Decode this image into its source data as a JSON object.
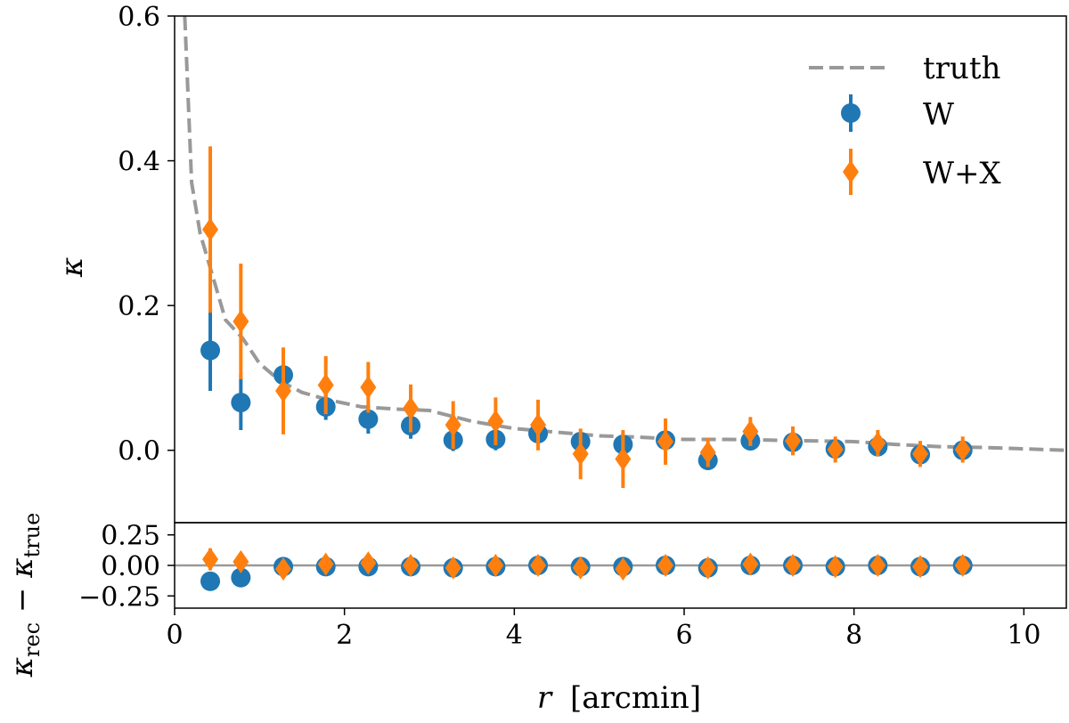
{
  "chart_data": {
    "type": "scatter",
    "xlabel": "r [arcmin]",
    "xlabel_var": "r",
    "xlabel_unit": "[arcmin]",
    "xlim": [
      0,
      10.5
    ],
    "xticks": [
      0,
      2,
      4,
      6,
      8,
      10
    ],
    "top_panel": {
      "ylabel": "κ",
      "ylim": [
        -0.1,
        0.6
      ],
      "yticks": [
        0.0,
        0.2,
        0.4,
        0.6
      ],
      "ytick_labels": [
        "0.0",
        "0.2",
        "0.4",
        "0.6"
      ],
      "truth": {
        "name": "truth",
        "color": "#999999",
        "x": [
          0.12,
          0.2,
          0.3,
          0.45,
          0.6,
          0.8,
          1.0,
          1.25,
          1.5,
          1.8,
          2.2,
          2.6,
          3.0,
          3.5,
          4.0,
          4.5,
          5.0,
          5.5,
          6.0,
          6.5,
          7.0,
          7.5,
          8.0,
          8.5,
          9.0,
          9.5,
          10.0,
          10.5
        ],
        "y": [
          0.6,
          0.37,
          0.3,
          0.24,
          0.18,
          0.155,
          0.12,
          0.095,
          0.08,
          0.07,
          0.06,
          0.057,
          0.055,
          0.04,
          0.03,
          0.025,
          0.02,
          0.018,
          0.015,
          0.015,
          0.014,
          0.013,
          0.012,
          0.008,
          0.005,
          0.004,
          0.002,
          0.0
        ]
      },
      "series": [
        {
          "name": "W",
          "color": "#1f77b4",
          "marker": "circle",
          "x": [
            0.42,
            0.78,
            1.28,
            1.78,
            2.28,
            2.78,
            3.28,
            3.78,
            4.28,
            4.78,
            5.28,
            5.78,
            6.28,
            6.78,
            7.28,
            7.78,
            8.28,
            8.78,
            9.28
          ],
          "y": [
            0.138,
            0.066,
            0.104,
            0.06,
            0.043,
            0.034,
            0.014,
            0.015,
            0.023,
            0.012,
            0.008,
            0.014,
            -0.014,
            0.013,
            0.011,
            0.002,
            0.005,
            -0.006,
            0.0
          ],
          "err": [
            0.056,
            0.038,
            0.02,
            0.018,
            0.02,
            0.018,
            0.015,
            0.015,
            0.015,
            0.01,
            0.01,
            0.01,
            0.01,
            0.008,
            0.008,
            0.008,
            0.008,
            0.008,
            0.008
          ]
        },
        {
          "name": "W+X",
          "color": "#ff7f0e",
          "marker": "diamond",
          "x": [
            0.42,
            0.78,
            1.28,
            1.78,
            2.28,
            2.78,
            3.28,
            3.78,
            4.28,
            4.78,
            5.28,
            5.78,
            6.28,
            6.78,
            7.28,
            7.78,
            8.28,
            8.78,
            9.28
          ],
          "y": [
            0.305,
            0.178,
            0.082,
            0.09,
            0.087,
            0.058,
            0.035,
            0.04,
            0.035,
            -0.005,
            -0.012,
            0.012,
            -0.003,
            0.026,
            0.013,
            0.001,
            0.01,
            -0.005,
            0.001
          ],
          "err": [
            0.115,
            0.08,
            0.06,
            0.04,
            0.035,
            0.033,
            0.033,
            0.033,
            0.035,
            0.035,
            0.04,
            0.032,
            0.02,
            0.02,
            0.02,
            0.018,
            0.018,
            0.018,
            0.018
          ]
        }
      ],
      "legend": {
        "position": "top-right",
        "entries": [
          "truth",
          "W",
          "W+X"
        ]
      }
    },
    "bottom_panel": {
      "ylabel_main": "κ",
      "ylabel_sub1": "rec",
      "ylabel_minus": " − ",
      "ylabel_sub2": "true",
      "ylim": [
        -0.35,
        0.35
      ],
      "yticks": [
        -0.25,
        0.0,
        0.25
      ],
      "ytick_labels": [
        "−0.25",
        "0.00",
        "0.25"
      ],
      "zero_line_color": "#999999",
      "series": [
        {
          "name": "W",
          "color": "#1f77b4",
          "marker": "circle",
          "x": [
            0.42,
            0.78,
            1.28,
            1.78,
            2.28,
            2.78,
            3.28,
            3.78,
            4.28,
            4.78,
            5.28,
            5.78,
            6.28,
            6.78,
            7.28,
            7.78,
            8.28,
            8.78,
            9.28
          ],
          "y": [
            -0.13,
            -0.1,
            -0.01,
            -0.01,
            -0.01,
            -0.01,
            -0.02,
            -0.01,
            0.0,
            -0.01,
            -0.01,
            0.0,
            -0.02,
            0.0,
            0.0,
            -0.01,
            0.0,
            -0.01,
            0.0
          ]
        },
        {
          "name": "W+X",
          "color": "#ff7f0e",
          "marker": "diamond",
          "x": [
            0.42,
            0.78,
            1.28,
            1.78,
            2.28,
            2.78,
            3.28,
            3.78,
            4.28,
            4.78,
            5.28,
            5.78,
            6.28,
            6.78,
            7.28,
            7.78,
            8.28,
            8.78,
            9.28
          ],
          "y": [
            0.05,
            0.03,
            -0.03,
            0.01,
            0.02,
            0.0,
            -0.02,
            0.0,
            0.0,
            -0.02,
            -0.03,
            0.0,
            -0.02,
            0.01,
            0.0,
            -0.01,
            0.0,
            -0.01,
            0.0
          ],
          "err": [
            0.09,
            0.05,
            0.06,
            0.04,
            0.05,
            0.04,
            0.04,
            0.04,
            0.05,
            0.05,
            0.06,
            0.04,
            0.04,
            0.04,
            0.04,
            0.04,
            0.04,
            0.04,
            0.04
          ]
        }
      ]
    }
  }
}
